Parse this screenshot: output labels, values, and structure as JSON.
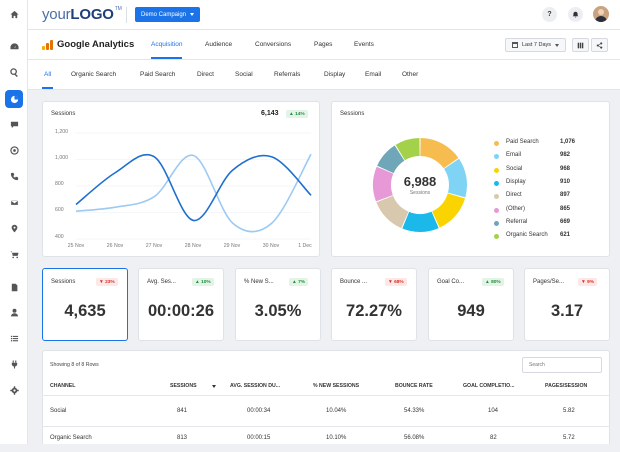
{
  "header": {
    "logo_prefix": "your",
    "logo_brand": "LOGO",
    "logo_tm": "TM",
    "campaign_label": "Demo Campaign",
    "help_label": "?",
    "accent": "#1a73e8"
  },
  "sidebar": {
    "items": [
      {
        "icon": "home-icon"
      },
      {
        "icon": "dashboard-icon"
      },
      {
        "icon": "search-icon"
      },
      {
        "icon": "analytics-icon"
      },
      {
        "icon": "chat-icon"
      },
      {
        "icon": "target-icon"
      },
      {
        "icon": "phone-icon"
      },
      {
        "icon": "mail-icon"
      },
      {
        "icon": "location-icon"
      },
      {
        "icon": "cart-icon"
      },
      {
        "icon": "document-icon"
      },
      {
        "icon": "user-icon"
      },
      {
        "icon": "list-icon"
      },
      {
        "icon": "plug-icon"
      },
      {
        "icon": "settings-icon"
      }
    ]
  },
  "ga": {
    "title": "Google Analytics",
    "tabs": [
      "Acquisition",
      "Audience",
      "Conversions",
      "Pages",
      "Events"
    ],
    "active_tab": "Acquisition",
    "date_range": "Last 7 Days"
  },
  "channels": {
    "tabs": [
      "All",
      "Organic Search",
      "Paid Search",
      "Direct",
      "Social",
      "Referrals",
      "Display",
      "Email",
      "Other"
    ],
    "active": "All"
  },
  "sessions_card": {
    "title": "Sessions",
    "total": "6,143",
    "change": "▲ 14%"
  },
  "chart_data": {
    "type": "line",
    "title": "Sessions",
    "x": [
      "25 Nov",
      "26 Nov",
      "27 Nov",
      "28 Nov",
      "29 Nov",
      "30 Nov",
      "1 Dec"
    ],
    "ylim": [
      400,
      1200
    ],
    "yticks": [
      "1,200",
      "1,000",
      "800",
      "600",
      "400"
    ],
    "series": [
      {
        "color": "#1f6fd1",
        "values": [
          660,
          900,
          1020,
          540,
          920,
          1020,
          730
        ]
      },
      {
        "color": "#9ccaf3",
        "values": [
          610,
          640,
          720,
          1030,
          520,
          520,
          1040
        ]
      }
    ]
  },
  "donut": {
    "title": "Sessions",
    "total": "6,988",
    "caption": "Sessions",
    "slices": [
      {
        "label": "Paid Search",
        "value": 1076,
        "display": "1,076",
        "color": "#f6bc4f"
      },
      {
        "label": "Email",
        "value": 982,
        "display": "982",
        "color": "#7fd3f5"
      },
      {
        "label": "Social",
        "value": 968,
        "display": "968",
        "color": "#fad400"
      },
      {
        "label": "Display",
        "value": 910,
        "display": "910",
        "color": "#1bb8ea"
      },
      {
        "label": "Direct",
        "value": 897,
        "display": "897",
        "color": "#d8c9ae"
      },
      {
        "label": "(Other)",
        "value": 865,
        "display": "865",
        "color": "#e699d6"
      },
      {
        "label": "Referral",
        "value": 669,
        "display": "669",
        "color": "#6fa7b8"
      },
      {
        "label": "Organic Search",
        "value": 621,
        "display": "621",
        "color": "#a4d14a"
      }
    ]
  },
  "kpis": [
    {
      "title": "Sessions",
      "value": "4,635",
      "change": "▼ 23%",
      "dir": "down"
    },
    {
      "title": "Avg. Ses...",
      "value": "00:00:26",
      "change": "▲ 10%",
      "dir": "up"
    },
    {
      "title": "% New S...",
      "value": "3.05%",
      "change": "▲ 7%",
      "dir": "up"
    },
    {
      "title": "Bounce ...",
      "value": "72.27%",
      "change": "▼ 68%",
      "dir": "down"
    },
    {
      "title": "Goal Co...",
      "value": "949",
      "change": "▲ 80%",
      "dir": "up"
    },
    {
      "title": "Pages/Se...",
      "value": "3.17",
      "change": "▼ 9%",
      "dir": "down"
    }
  ],
  "table": {
    "showing": "Showing 8 of 8 Rows",
    "search_placeholder": "Search",
    "headers": [
      "CHANNEL",
      "SESSIONS",
      "AVG. SESSION DU...",
      "% NEW SESSIONS",
      "BOUNCE RATE",
      "GOAL COMPLETIO...",
      "PAGES/SESSION"
    ],
    "rows": [
      [
        "Social",
        "841",
        "00:00:34",
        "10.04%",
        "54.33%",
        "104",
        "5.82"
      ],
      [
        "Organic Search",
        "813",
        "00:00:15",
        "10.10%",
        "56.08%",
        "82",
        "5.72"
      ]
    ]
  }
}
